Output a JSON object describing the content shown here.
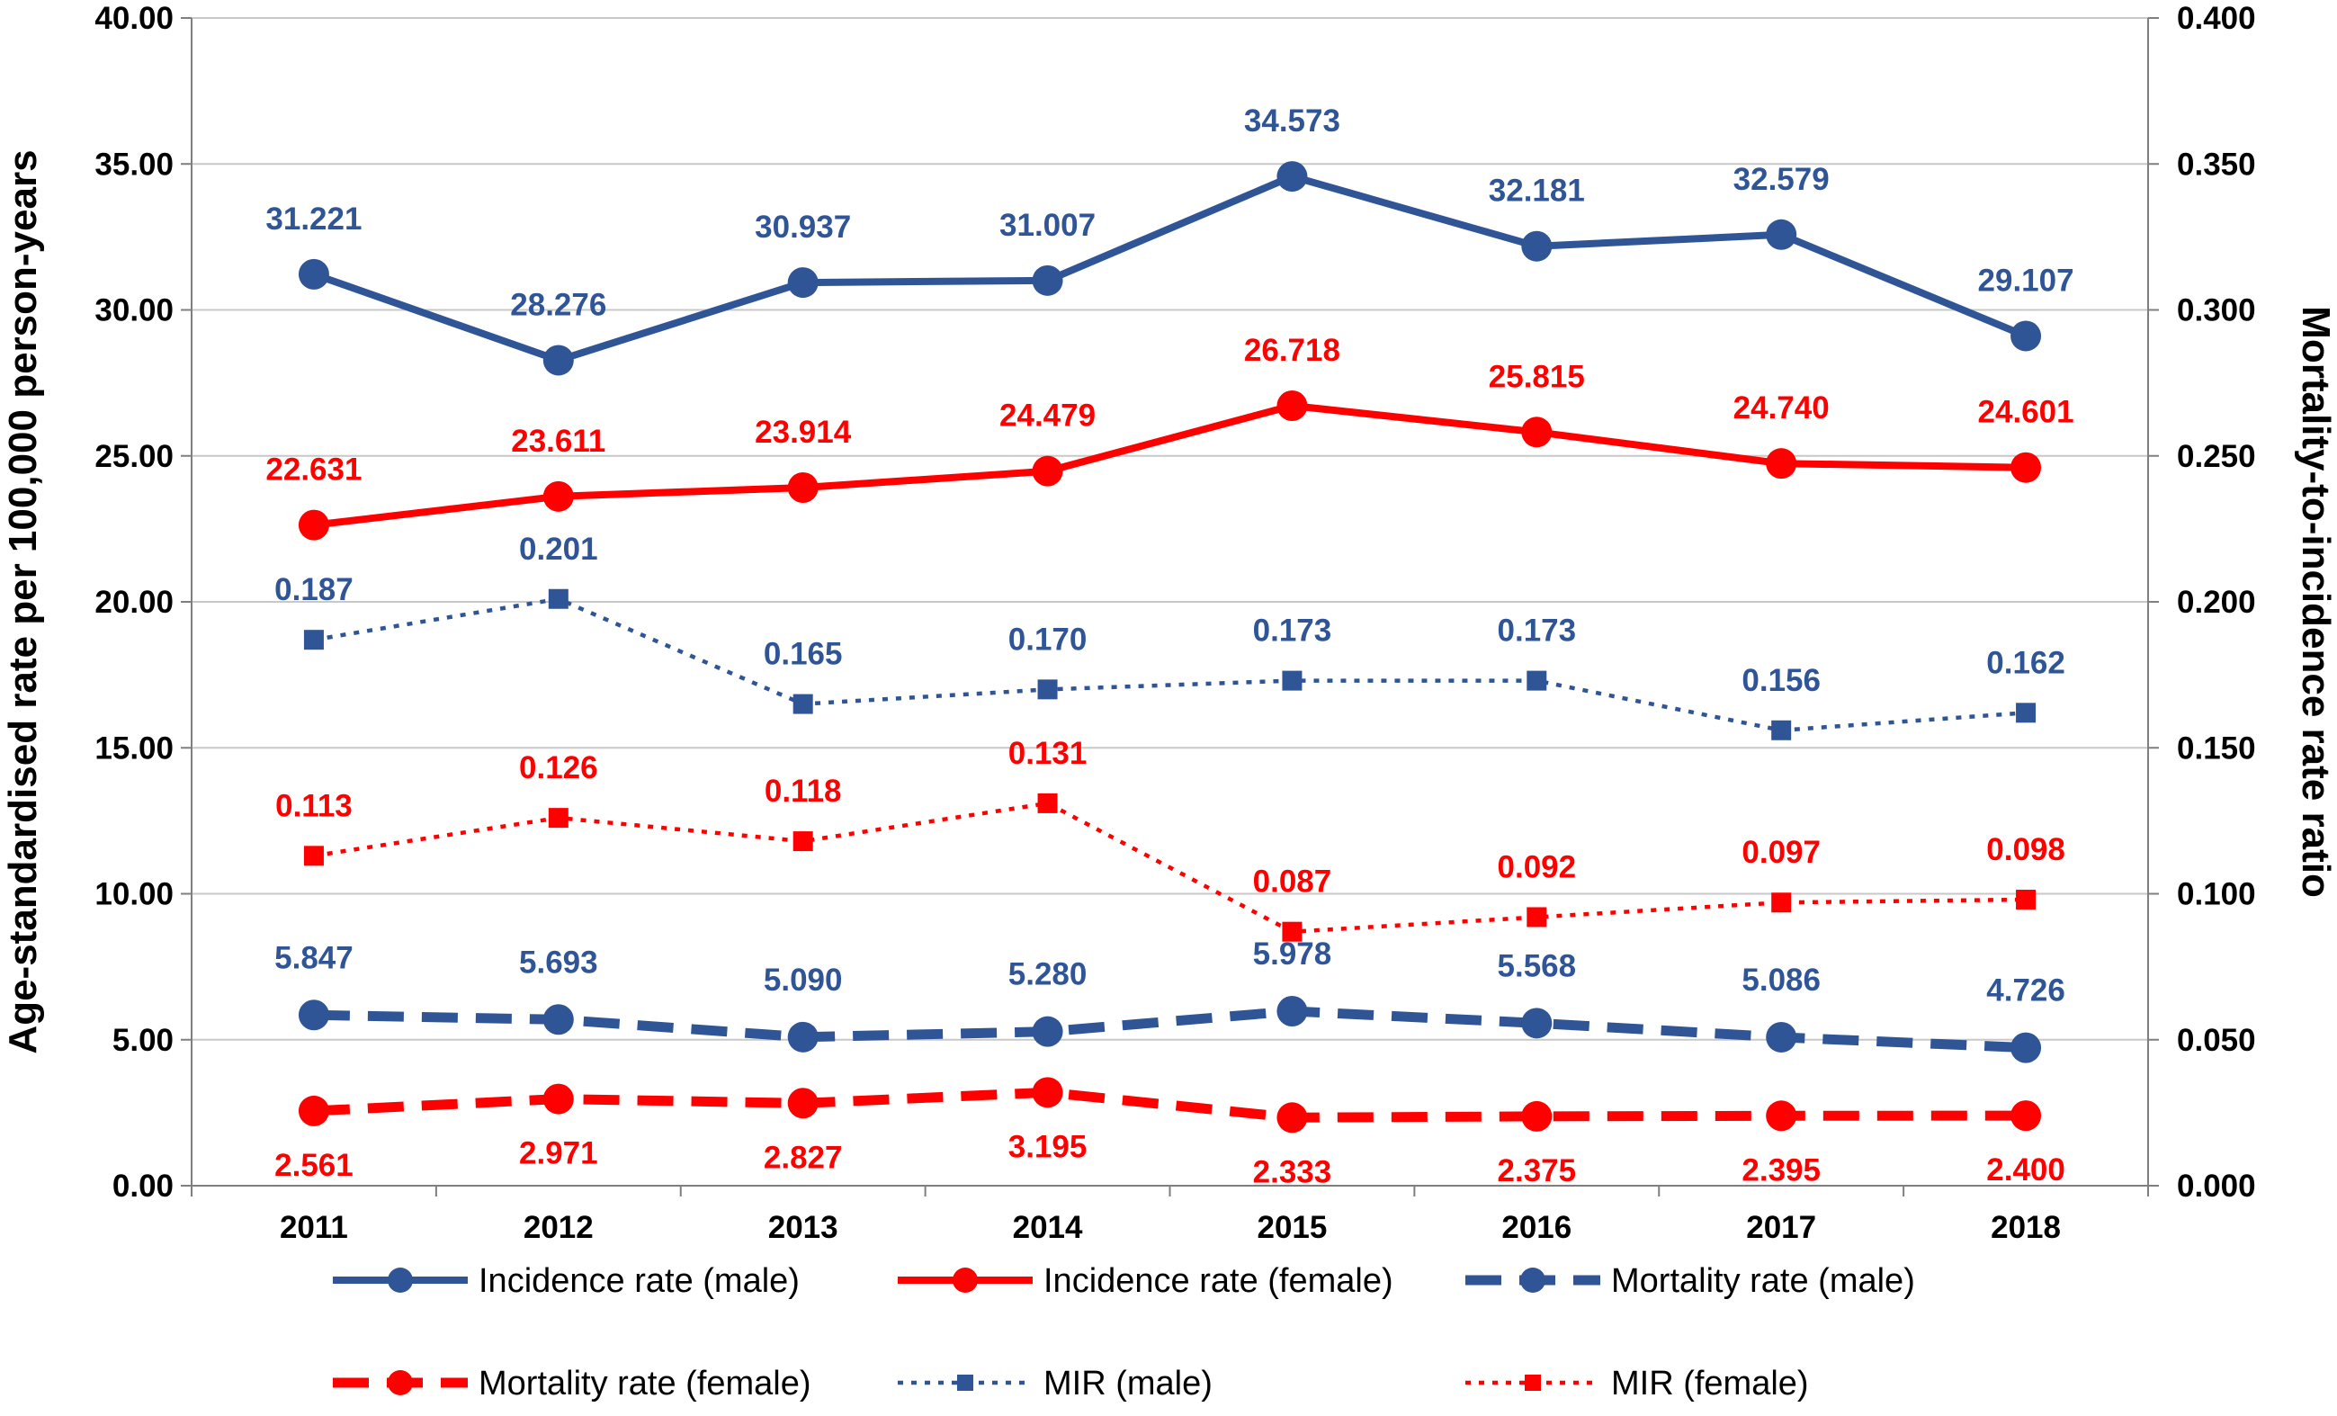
{
  "chart_data": {
    "type": "line",
    "categories": [
      "2011",
      "2012",
      "2013",
      "2014",
      "2015",
      "2016",
      "2017",
      "2018"
    ],
    "ylabel_left": "Age-standardised rate per 100,000 person-years",
    "ylabel_right": "Mortality-to-incidence rate ratio",
    "ylim_left": [
      0,
      40
    ],
    "ylim_right": [
      0,
      0.4
    ],
    "yticks_left": [
      "0.00",
      "5.00",
      "10.00",
      "15.00",
      "20.00",
      "25.00",
      "30.00",
      "35.00",
      "40.00"
    ],
    "yticks_right": [
      "0.000",
      "0.050",
      "0.100",
      "0.150",
      "0.200",
      "0.250",
      "0.300",
      "0.350",
      "0.400"
    ],
    "grid": true,
    "legend_position": "bottom",
    "series": [
      {
        "name": "Incidence rate (male)",
        "axis": "left",
        "color": "#2F5597",
        "style": "solid",
        "marker": "circle",
        "values": [
          31.221,
          28.276,
          30.937,
          31.007,
          34.573,
          32.181,
          32.579,
          29.107
        ],
        "labels": [
          "31.221",
          "28.276",
          "30.937",
          "31.007",
          "34.573",
          "32.181",
          "32.579",
          "29.107"
        ]
      },
      {
        "name": "Incidence rate (female)",
        "axis": "left",
        "color": "#FF0000",
        "style": "solid",
        "marker": "circle",
        "values": [
          22.631,
          23.611,
          23.914,
          24.479,
          26.718,
          25.815,
          24.74,
          24.601
        ],
        "labels": [
          "22.631",
          "23.611",
          "23.914",
          "24.479",
          "26.718",
          "25.815",
          "24.740",
          "24.601"
        ]
      },
      {
        "name": "Mortality rate (male)",
        "axis": "left",
        "color": "#2F5597",
        "style": "dashed",
        "marker": "circle",
        "values": [
          5.847,
          5.693,
          5.09,
          5.28,
          5.978,
          5.568,
          5.086,
          4.726
        ],
        "labels": [
          "5.847",
          "5.693",
          "5.090",
          "5.280",
          "5.978",
          "5.568",
          "5.086",
          "4.726"
        ]
      },
      {
        "name": "Mortality rate (female)",
        "axis": "left",
        "color": "#FF0000",
        "style": "dashed",
        "marker": "circle",
        "values": [
          2.561,
          2.971,
          2.827,
          3.195,
          2.333,
          2.375,
          2.395,
          2.4
        ],
        "labels": [
          "2.561",
          "2.971",
          "2.827",
          "3.195",
          "2.333",
          "2.375",
          "2.395",
          "2.400"
        ]
      },
      {
        "name": "MIR (male)",
        "axis": "right",
        "color": "#2F5597",
        "style": "dotted",
        "marker": "square",
        "values": [
          0.187,
          0.201,
          0.165,
          0.17,
          0.173,
          0.173,
          0.156,
          0.162
        ],
        "labels": [
          "0.187",
          "0.201",
          "0.165",
          "0.170",
          "0.173",
          "0.173",
          "0.156",
          "0.162"
        ]
      },
      {
        "name": "MIR (female)",
        "axis": "right",
        "color": "#FF0000",
        "style": "dotted",
        "marker": "square",
        "values": [
          0.113,
          0.126,
          0.118,
          0.131,
          0.087,
          0.092,
          0.097,
          0.098
        ],
        "labels": [
          "0.113",
          "0.126",
          "0.118",
          "0.131",
          "0.087",
          "0.092",
          "0.097",
          "0.098"
        ]
      }
    ]
  }
}
